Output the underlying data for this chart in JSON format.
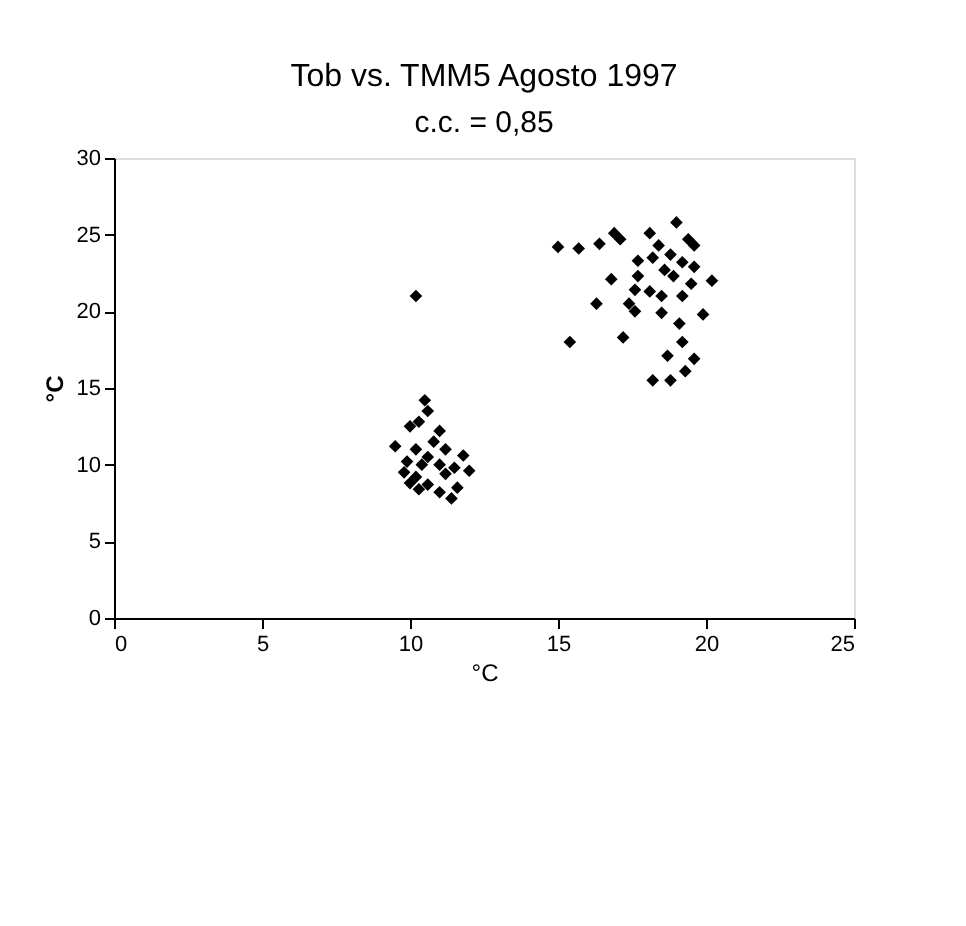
{
  "chart_data": {
    "type": "scatter",
    "title": "Tob vs. TMM5 Agosto 1997",
    "subtitle": "c.c. = 0,85",
    "xlabel": "°C",
    "ylabel": "°C",
    "xlim": [
      0,
      25
    ],
    "ylim": [
      0,
      30
    ],
    "xticks": [
      0,
      5,
      10,
      15,
      20,
      25
    ],
    "yticks": [
      0,
      5,
      10,
      15,
      20,
      25,
      30
    ],
    "grid": false,
    "legend": false,
    "marker": "diamond",
    "series": [
      {
        "color": "#000000",
        "x": [
          10.2,
          10.5,
          10.6,
          10.3,
          10.0,
          11.0,
          10.8,
          9.5,
          10.2,
          11.2,
          11.8,
          10.6,
          9.9,
          10.4,
          11.0,
          11.5,
          9.8,
          10.2,
          11.2,
          12.0,
          10.0,
          10.6,
          11.6,
          10.3,
          11.0,
          11.4,
          15.0,
          15.7,
          16.4,
          16.9,
          17.1,
          19.0,
          18.1,
          18.4,
          18.8,
          19.4,
          19.6,
          19.2,
          19.6,
          18.6,
          18.2,
          17.7,
          20.2,
          19.5,
          18.9,
          17.7,
          16.8,
          17.6,
          18.1,
          18.5,
          19.2,
          16.3,
          17.4,
          17.6,
          18.5,
          19.9,
          19.1,
          15.4,
          17.2,
          19.2,
          18.7,
          19.6,
          19.3,
          18.8,
          18.2
        ],
        "values": [
          21.0,
          14.2,
          13.5,
          12.8,
          12.5,
          12.2,
          11.5,
          11.2,
          11.0,
          11.0,
          10.6,
          10.5,
          10.2,
          10.0,
          10.0,
          9.8,
          9.5,
          9.2,
          9.4,
          9.6,
          8.8,
          8.7,
          8.5,
          8.4,
          8.2,
          7.8,
          24.2,
          24.1,
          24.4,
          25.1,
          24.7,
          25.8,
          25.1,
          24.3,
          23.7,
          24.7,
          24.3,
          23.2,
          22.9,
          22.7,
          23.5,
          23.3,
          22.0,
          21.8,
          22.3,
          22.3,
          22.1,
          21.4,
          21.3,
          21.0,
          21.0,
          20.5,
          20.5,
          20.0,
          19.9,
          19.8,
          19.2,
          18.0,
          18.3,
          18.0,
          17.1,
          16.9,
          16.1,
          15.5,
          15.5
        ]
      }
    ]
  }
}
